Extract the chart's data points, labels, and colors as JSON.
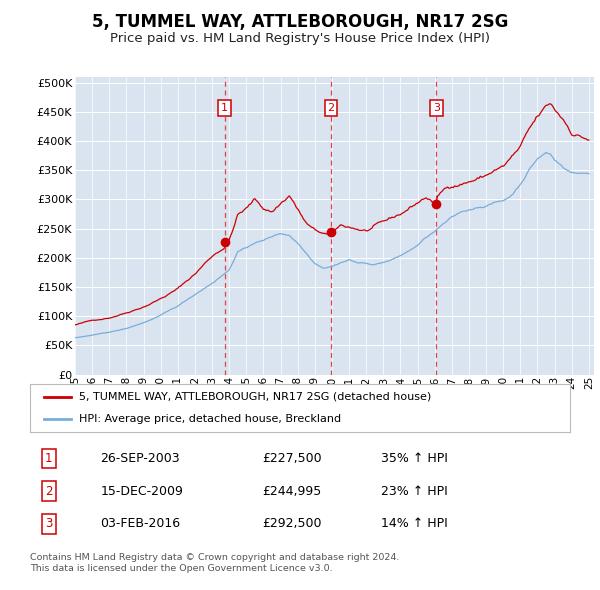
{
  "title": "5, TUMMEL WAY, ATTLEBOROUGH, NR17 2SG",
  "subtitle": "Price paid vs. HM Land Registry's House Price Index (HPI)",
  "yticks": [
    0,
    50000,
    100000,
    150000,
    200000,
    250000,
    300000,
    350000,
    400000,
    450000,
    500000
  ],
  "ytick_labels": [
    "£0",
    "£50K",
    "£100K",
    "£150K",
    "£200K",
    "£250K",
    "£300K",
    "£350K",
    "£400K",
    "£450K",
    "£500K"
  ],
  "ylim": [
    0,
    510000
  ],
  "xlim": [
    1995.0,
    2025.3
  ],
  "background_color": "#d9e4f0",
  "grid_color": "#ffffff",
  "red_line_color": "#cc0000",
  "blue_line_color": "#7aadda",
  "vline_color": "#dd3333",
  "transactions": [
    {
      "num": 1,
      "date_x": 2003.73,
      "price": 227500,
      "date_str": "26-SEP-2003",
      "price_str": "£227,500",
      "pct_str": "35% ↑ HPI"
    },
    {
      "num": 2,
      "date_x": 2009.95,
      "price": 244995,
      "date_str": "15-DEC-2009",
      "price_str": "£244,995",
      "pct_str": "23% ↑ HPI"
    },
    {
      "num": 3,
      "date_x": 2016.09,
      "price": 292500,
      "date_str": "03-FEB-2016",
      "price_str": "£292,500",
      "pct_str": "14% ↑ HPI"
    }
  ],
  "xtick_years": [
    1995,
    1996,
    1997,
    1998,
    1999,
    2000,
    2001,
    2002,
    2003,
    2004,
    2005,
    2006,
    2007,
    2008,
    2009,
    2010,
    2011,
    2012,
    2013,
    2014,
    2015,
    2016,
    2017,
    2018,
    2019,
    2020,
    2021,
    2022,
    2023,
    2024,
    2025
  ],
  "legend_label_red": "5, TUMMEL WAY, ATTLEBOROUGH, NR17 2SG (detached house)",
  "legend_label_blue": "HPI: Average price, detached house, Breckland",
  "footer_text": "Contains HM Land Registry data © Crown copyright and database right 2024.\nThis data is licensed under the Open Government Licence v3.0."
}
